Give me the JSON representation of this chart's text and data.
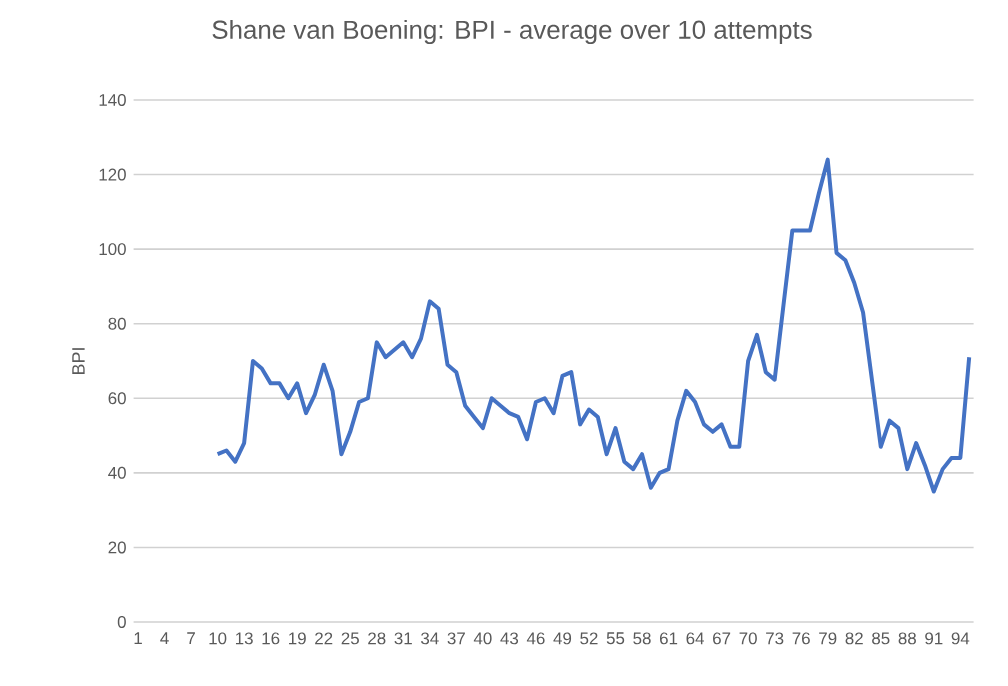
{
  "chart_data": {
    "type": "line",
    "title": "Shane van Boening:  BPI - average over 10 attempts",
    "ylabel": "BPI",
    "categories": [
      "1",
      null,
      null,
      "4",
      null,
      null,
      "7",
      null,
      null,
      "10",
      null,
      null,
      "13",
      null,
      null,
      "16",
      null,
      null,
      "19",
      null,
      null,
      "22",
      null,
      null,
      "25",
      null,
      null,
      "28",
      null,
      null,
      "31",
      null,
      null,
      "34",
      null,
      null,
      "37",
      null,
      null,
      "40",
      null,
      null,
      "43",
      null,
      null,
      "46",
      null,
      null,
      "49",
      null,
      null,
      "52",
      null,
      null,
      "55",
      null,
      null,
      "58",
      null,
      null,
      "61",
      null,
      null,
      "64",
      null,
      null,
      "67",
      null,
      null,
      "70",
      null,
      null,
      "73",
      null,
      null,
      "76",
      null,
      null,
      "79",
      null,
      null,
      "82",
      null,
      null,
      "85",
      null,
      null,
      "88",
      null,
      null,
      "91",
      null,
      null,
      "94",
      null
    ],
    "series": [
      {
        "color": "#4472c4",
        "values": [
          null,
          null,
          null,
          null,
          null,
          null,
          null,
          null,
          null,
          45,
          46,
          43,
          48,
          70,
          68,
          64,
          64,
          60,
          64,
          56,
          61,
          69,
          62,
          45,
          51,
          59,
          60,
          75,
          71,
          73,
          75,
          71,
          76,
          86,
          84,
          69,
          67,
          58,
          55,
          52,
          60,
          58,
          56,
          55,
          49,
          59,
          60,
          56,
          66,
          67,
          53,
          57,
          55,
          45,
          52,
          43,
          41,
          45,
          36,
          40,
          41,
          54,
          62,
          59,
          53,
          51,
          53,
          47,
          47,
          70,
          77,
          67,
          65,
          85,
          105,
          105,
          105,
          115,
          124,
          99,
          97,
          91,
          83,
          65,
          47,
          54,
          52,
          41,
          48,
          42,
          35,
          41,
          44,
          44,
          71
        ]
      }
    ],
    "ylim": [
      0,
      140
    ],
    "yticks": [
      0,
      20,
      40,
      60,
      80,
      100,
      120,
      140
    ],
    "grid": "y",
    "marker": "none",
    "line_style": "solid"
  }
}
